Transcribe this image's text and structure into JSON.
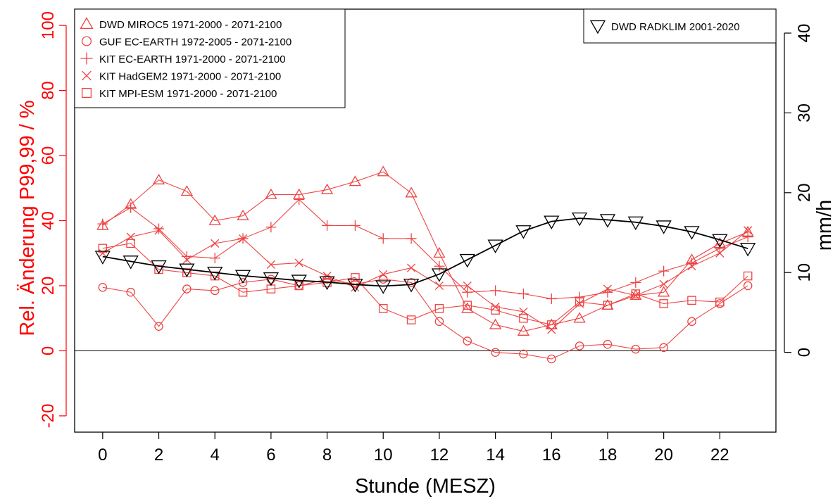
{
  "chart_data": {
    "type": "line",
    "xlabel": "Stunde (MESZ)",
    "ylabel_left": "Rel. Änderung P99,99 / %",
    "ylabel_right": "mm/h",
    "x": [
      0,
      1,
      2,
      3,
      4,
      5,
      6,
      7,
      8,
      9,
      10,
      11,
      12,
      13,
      14,
      15,
      16,
      17,
      18,
      19,
      20,
      21,
      22,
      23
    ],
    "xlim": [
      -1,
      24
    ],
    "xticks": [
      0,
      2,
      4,
      6,
      8,
      10,
      12,
      14,
      16,
      18,
      20,
      22
    ],
    "ylim_left": [
      -25,
      105
    ],
    "yticks_left": [
      -20,
      0,
      20,
      40,
      60,
      80,
      100
    ],
    "ylim_right": [
      -10,
      43
    ],
    "yticks_right": [
      0,
      10,
      20,
      30,
      40
    ],
    "zero_line": 0,
    "colors": {
      "left_axis": "#ff0000",
      "series": "#ee4444",
      "reference": "#000000"
    },
    "legend_left": {
      "position": "top-left"
    },
    "legend_right": {
      "position": "top-right"
    },
    "series": [
      {
        "name": "DWD MIROC5 1971-2000 - 2071-2100",
        "marker": "triangle-up",
        "axis": "left",
        "values": [
          38.5,
          45,
          52.5,
          49,
          40,
          41.5,
          48,
          48,
          49.5,
          52,
          55,
          48.5,
          30,
          13,
          8,
          6,
          8,
          10,
          14,
          17,
          18,
          28,
          33,
          36.5
        ]
      },
      {
        "name": "GUF EC-EARTH 1972-2005 - 2071-2100",
        "marker": "circle",
        "axis": "left",
        "values": [
          19.5,
          18,
          7.5,
          19,
          18.5,
          21,
          22,
          20,
          22,
          20.5,
          22,
          21,
          9,
          3,
          -0.5,
          -1,
          -2.5,
          1.5,
          2,
          0.5,
          1,
          9,
          14.5,
          20
        ]
      },
      {
        "name": "KIT EC-EARTH 1971-2000 - 2071-2100",
        "marker": "plus",
        "axis": "left",
        "values": [
          39,
          44,
          37.5,
          29,
          28.5,
          34.5,
          38,
          46.5,
          38.5,
          38.5,
          34.5,
          34.5,
          26,
          18,
          18.5,
          17.5,
          16,
          16.5,
          18,
          21,
          24.5,
          27,
          31.5,
          35
        ]
      },
      {
        "name": "KIT HadGEM2 1971-2000 - 2071-2100",
        "marker": "cross",
        "axis": "left",
        "values": [
          30,
          35,
          37,
          28,
          33,
          34.5,
          26.5,
          27,
          23,
          19.5,
          23.5,
          25.5,
          20,
          20,
          13.5,
          12,
          6.5,
          14.5,
          19,
          17,
          20.5,
          26,
          30,
          37
        ]
      },
      {
        "name": "KIT MPI-ESM 1971-2000 - 2071-2100",
        "marker": "square",
        "axis": "left",
        "values": [
          31.5,
          33,
          25,
          24,
          23,
          18,
          19,
          20,
          21,
          22.5,
          13,
          9.5,
          13,
          14,
          12.5,
          10,
          8,
          15,
          14,
          17.5,
          14.5,
          15.5,
          15,
          23
        ]
      },
      {
        "name": "DWD RADKLIM 2001-2020",
        "marker": "triangle-down",
        "axis": "right",
        "values": [
          12,
          11.4,
          10.8,
          10.4,
          10,
          9.6,
          9.3,
          9,
          8.8,
          8.5,
          8.3,
          8.5,
          9.8,
          11.6,
          13.4,
          15.2,
          16.4,
          16.8,
          16.6,
          16.3,
          15.8,
          15.1,
          14.1,
          13
        ]
      }
    ]
  }
}
